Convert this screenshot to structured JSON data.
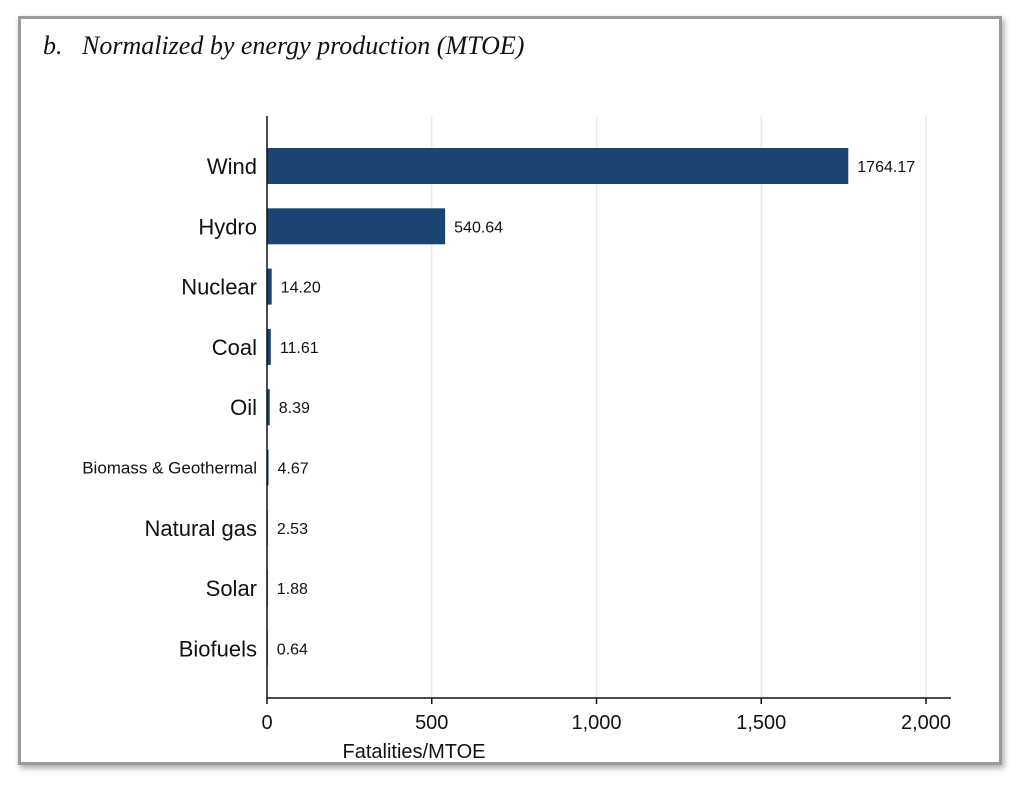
{
  "figure": {
    "title": "b.   Normalized by energy production (MTOE)"
  },
  "chart_data": {
    "type": "bar",
    "orientation": "horizontal",
    "categories": [
      "Wind",
      "Hydro",
      "Nuclear",
      "Coal",
      "Oil",
      "Biomass & Geothermal",
      "Natural gas",
      "Solar",
      "Biofuels"
    ],
    "values": [
      1764.17,
      540.64,
      14.2,
      11.61,
      8.39,
      4.67,
      2.53,
      1.88,
      0.64
    ],
    "data_labels": [
      "1764.17",
      "540.64",
      "14.20",
      "11.61",
      "8.39",
      "4.67",
      "2.53",
      "1.88",
      "0.64"
    ],
    "xlabel": "Fatalities/MTOE",
    "ylabel": "",
    "xlim": [
      0,
      2000
    ],
    "x_ticks": [
      0,
      500,
      1000,
      1500,
      2000
    ],
    "x_tick_labels": [
      "0",
      "500",
      "1,000",
      "1,500",
      "2,000"
    ],
    "grid": "vertical",
    "bar_color": "#1b4470",
    "grid_color": "#e3ecec"
  }
}
